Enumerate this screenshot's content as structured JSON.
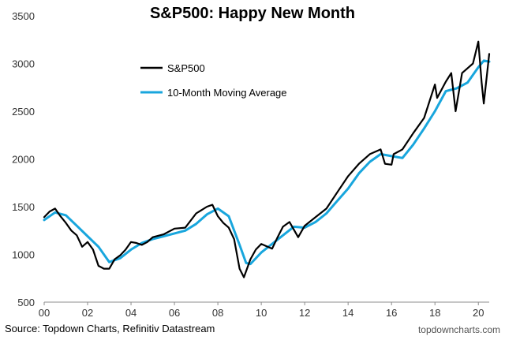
{
  "chart_data": {
    "type": "line",
    "title": "S&P500: Happy New Month",
    "xlabel": "",
    "ylabel": "",
    "xlim": [
      2000,
      2020.5
    ],
    "ylim": [
      500,
      3500
    ],
    "y_ticks": [
      500,
      1000,
      1500,
      2000,
      2500,
      3000,
      3500
    ],
    "x_ticks": [
      2000,
      2002,
      2004,
      2006,
      2008,
      2010,
      2012,
      2014,
      2016,
      2018,
      2020
    ],
    "x_tick_labels": [
      "00",
      "02",
      "04",
      "06",
      "08",
      "10",
      "12",
      "14",
      "16",
      "18",
      "20"
    ],
    "grid": false,
    "legend_position": "upper-left",
    "series": [
      {
        "name": "S&P500",
        "color": "#000000",
        "x": [
          2000.0,
          2000.25,
          2000.5,
          2000.75,
          2001.0,
          2001.25,
          2001.5,
          2001.75,
          2002.0,
          2002.25,
          2002.5,
          2002.75,
          2003.0,
          2003.25,
          2003.5,
          2003.75,
          2004.0,
          2004.25,
          2004.5,
          2004.75,
          2005.0,
          2005.5,
          2006.0,
          2006.5,
          2007.0,
          2007.5,
          2007.75,
          2008.0,
          2008.25,
          2008.5,
          2008.75,
          2009.0,
          2009.2,
          2009.5,
          2009.75,
          2010.0,
          2010.5,
          2010.75,
          2011.0,
          2011.3,
          2011.7,
          2012.0,
          2012.5,
          2013.0,
          2013.5,
          2014.0,
          2014.5,
          2015.0,
          2015.5,
          2015.7,
          2016.0,
          2016.1,
          2016.5,
          2017.0,
          2017.5,
          2018.0,
          2018.1,
          2018.5,
          2018.75,
          2018.95,
          2019.25,
          2019.5,
          2019.75,
          2020.0,
          2020.15,
          2020.25,
          2020.5
        ],
        "values": [
          1390,
          1450,
          1480,
          1400,
          1330,
          1250,
          1200,
          1080,
          1130,
          1050,
          880,
          850,
          850,
          950,
          990,
          1050,
          1130,
          1120,
          1100,
          1130,
          1180,
          1210,
          1270,
          1280,
          1430,
          1500,
          1520,
          1400,
          1330,
          1280,
          1160,
          850,
          760,
          950,
          1050,
          1110,
          1060,
          1180,
          1290,
          1340,
          1180,
          1300,
          1390,
          1480,
          1650,
          1820,
          1950,
          2050,
          2100,
          1950,
          1940,
          2050,
          2100,
          2270,
          2430,
          2780,
          2640,
          2810,
          2900,
          2500,
          2900,
          2950,
          3000,
          3230,
          2800,
          2580,
          3100
        ]
      },
      {
        "name": "10-Month Moving Average",
        "color": "#18A6DD",
        "x": [
          2000.0,
          2000.5,
          2001.0,
          2001.5,
          2002.0,
          2002.5,
          2003.0,
          2003.5,
          2004.0,
          2004.5,
          2005.0,
          2005.5,
          2006.0,
          2006.5,
          2007.0,
          2007.5,
          2008.0,
          2008.5,
          2009.0,
          2009.3,
          2009.5,
          2010.0,
          2010.5,
          2011.0,
          2011.5,
          2012.0,
          2012.5,
          2013.0,
          2013.5,
          2014.0,
          2014.5,
          2015.0,
          2015.5,
          2016.0,
          2016.5,
          2017.0,
          2017.5,
          2018.0,
          2018.5,
          2019.0,
          2019.5,
          2020.0,
          2020.25,
          2020.5
        ],
        "values": [
          1360,
          1440,
          1410,
          1300,
          1190,
          1080,
          920,
          960,
          1050,
          1120,
          1160,
          1190,
          1220,
          1250,
          1320,
          1420,
          1480,
          1400,
          1100,
          910,
          900,
          1020,
          1110,
          1200,
          1290,
          1280,
          1340,
          1430,
          1560,
          1690,
          1850,
          1970,
          2050,
          2030,
          2010,
          2150,
          2320,
          2500,
          2710,
          2740,
          2800,
          2960,
          3030,
          3020
        ]
      }
    ],
    "source": "Source: Topdown Charts, Refinitiv Datastream",
    "watermark": "topdowncharts.com"
  }
}
